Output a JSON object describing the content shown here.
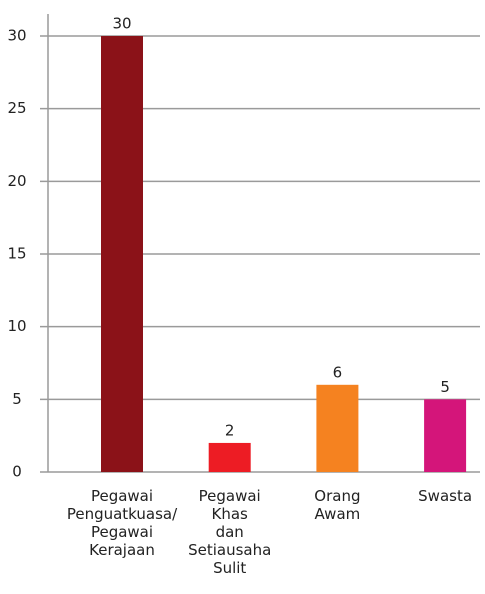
{
  "chart_data": {
    "type": "bar",
    "categories": [
      "Pegawai Penguatkuasa/ Pegawai Kerajaan",
      "Pegawai Khas dan Setiausaha Sulit",
      "Orang Awam",
      "Swasta"
    ],
    "values": [
      30,
      2,
      6,
      5
    ],
    "colors": [
      "#8b1218",
      "#ed1c24",
      "#f58220",
      "#d4157a"
    ],
    "ylim": [
      0,
      30
    ],
    "yticks": [
      0,
      5,
      10,
      15,
      20,
      25,
      30
    ],
    "grid": true
  }
}
